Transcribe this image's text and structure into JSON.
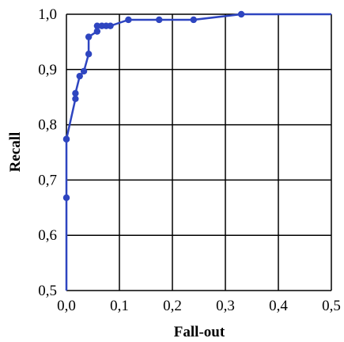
{
  "chart_data": {
    "type": "line",
    "xlabel": "Fall-out",
    "ylabel": "Recall",
    "xlim": [
      0.0,
      0.5
    ],
    "ylim": [
      0.5,
      1.0
    ],
    "x_ticks": [
      "0,0",
      "0,1",
      "0,2",
      "0,3",
      "0,4",
      "0,5"
    ],
    "y_ticks": [
      "0,5",
      "0,6",
      "0,7",
      "0,8",
      "0,9",
      "1,0"
    ],
    "grid": true,
    "legend": "none",
    "line_color": "#2e45c0",
    "series": [
      {
        "x": [
          0.0,
          0.0,
          0.0,
          0.0,
          0.017,
          0.017,
          0.025,
          0.033,
          0.042,
          0.042,
          0.058,
          0.058,
          0.067,
          0.075,
          0.083,
          0.117,
          0.175,
          0.24,
          0.33,
          0.5
        ],
        "y": [
          0.5,
          0.668,
          0.774,
          0.774,
          0.847,
          0.857,
          0.888,
          0.897,
          0.928,
          0.959,
          0.969,
          0.979,
          0.979,
          0.979,
          0.979,
          0.99,
          0.99,
          0.99,
          1.0,
          1.0
        ],
        "markers": [
          false,
          true,
          true,
          true,
          true,
          true,
          true,
          true,
          true,
          true,
          true,
          true,
          true,
          true,
          true,
          true,
          true,
          true,
          true,
          false
        ]
      }
    ]
  }
}
